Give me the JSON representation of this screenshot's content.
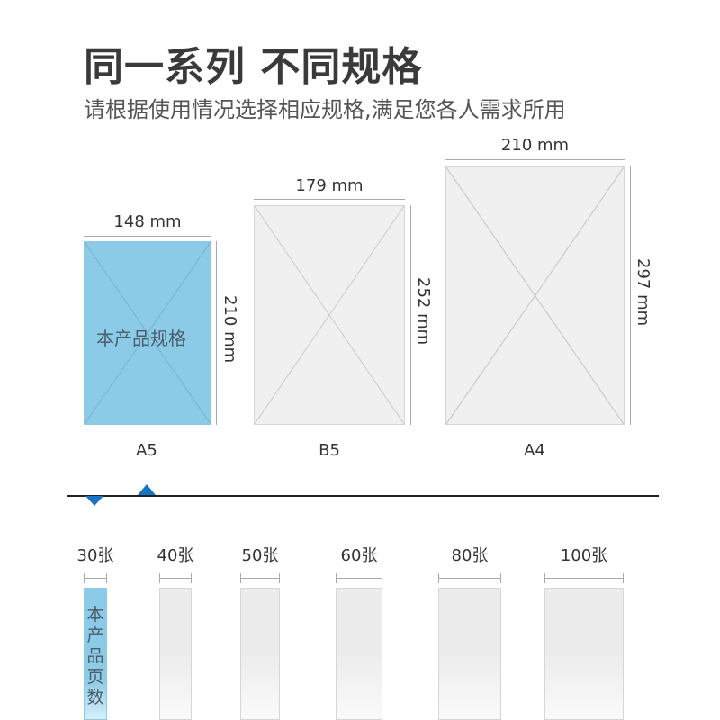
{
  "header": {
    "title": "同一系列 不同规格",
    "subtitle": "请根据使用情况选择相应规格,满足您各人需求所用"
  },
  "sizes": [
    {
      "name": "A5",
      "width": "148 mm",
      "height": "210 mm",
      "selected": true,
      "selected_label": "本产品规格"
    },
    {
      "name": "B5",
      "width": "179 mm",
      "height": "252 mm",
      "selected": false
    },
    {
      "name": "A4",
      "width": "210 mm",
      "height": "297 mm",
      "selected": false
    }
  ],
  "page_counts": [
    {
      "label": "30张",
      "selected": true,
      "selected_label": "本产品页数"
    },
    {
      "label": "40张"
    },
    {
      "label": "50张"
    },
    {
      "label": "60张"
    },
    {
      "label": "80张"
    },
    {
      "label": "100张"
    }
  ],
  "colors": {
    "selected": "#8ccbe8",
    "accent": "#1a74c4",
    "unselected": "#f0f0f0"
  }
}
